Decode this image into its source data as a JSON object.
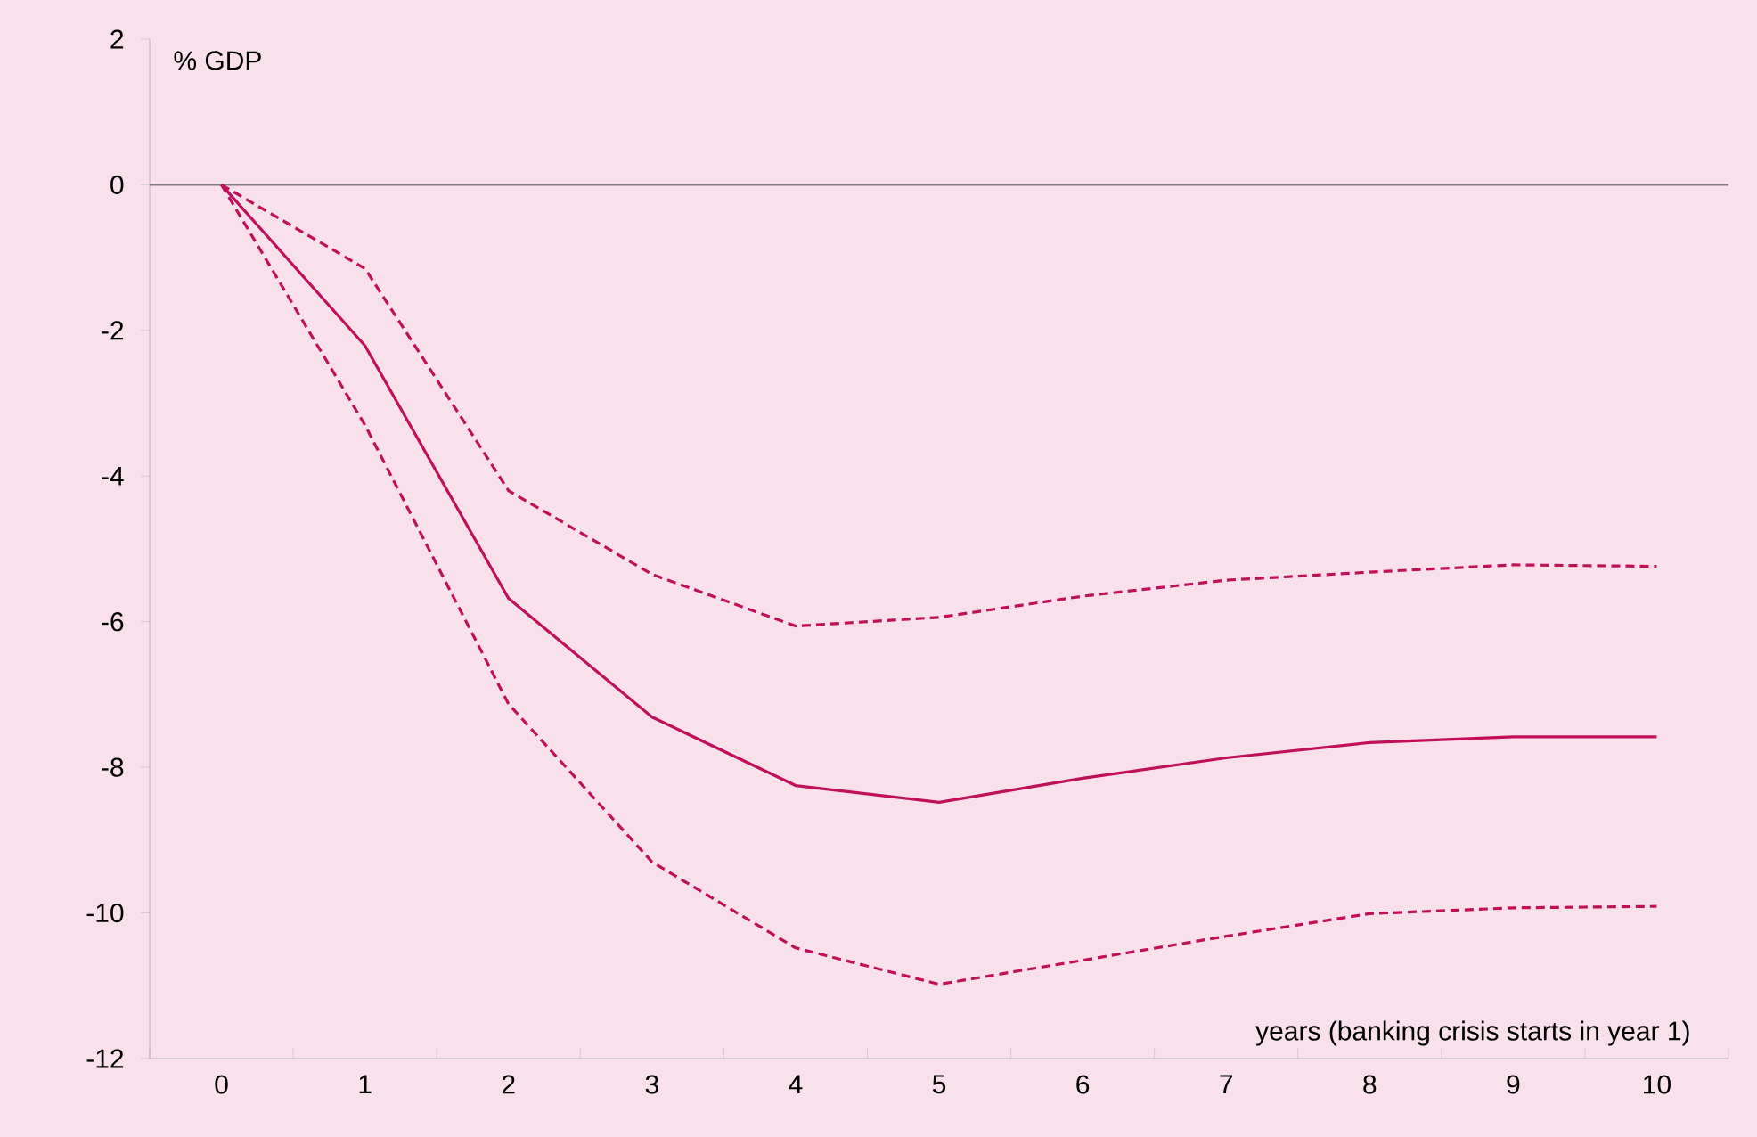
{
  "chart_data": {
    "type": "line",
    "ylabel": "% GDP",
    "xlabel": "years (banking crisis starts in year 1)",
    "categories": [
      "0",
      "1",
      "2",
      "3",
      "4",
      "5",
      "6",
      "7",
      "8",
      "9",
      "10"
    ],
    "series": [
      {
        "color": "#c0105a",
        "line_style": "dashed",
        "values": [
          0,
          -1.15,
          -4.2,
          -5.35,
          -6.06,
          -5.94,
          -5.65,
          -5.43,
          -5.32,
          -5.22,
          -5.24
        ]
      },
      {
        "color": "#c0105a",
        "line_style": "solid",
        "values": [
          0,
          -2.21,
          -5.68,
          -7.31,
          -8.25,
          -8.48,
          -8.15,
          -7.87,
          -7.66,
          -7.58,
          -7.58
        ]
      },
      {
        "color": "#c0105a",
        "line_style": "dashed",
        "values": [
          0,
          -3.3,
          -7.13,
          -9.3,
          -10.48,
          -10.98,
          -10.65,
          -10.32,
          -10.01,
          -9.93,
          -9.91
        ]
      }
    ],
    "ylim": [
      -12,
      2
    ],
    "yticks": [
      -12,
      -10,
      -8,
      -6,
      -4,
      -2,
      0,
      2
    ],
    "ref_lines": [
      {
        "axis": "y",
        "value": 0,
        "color": "#808080"
      }
    ],
    "grid": false,
    "marker": "none"
  }
}
